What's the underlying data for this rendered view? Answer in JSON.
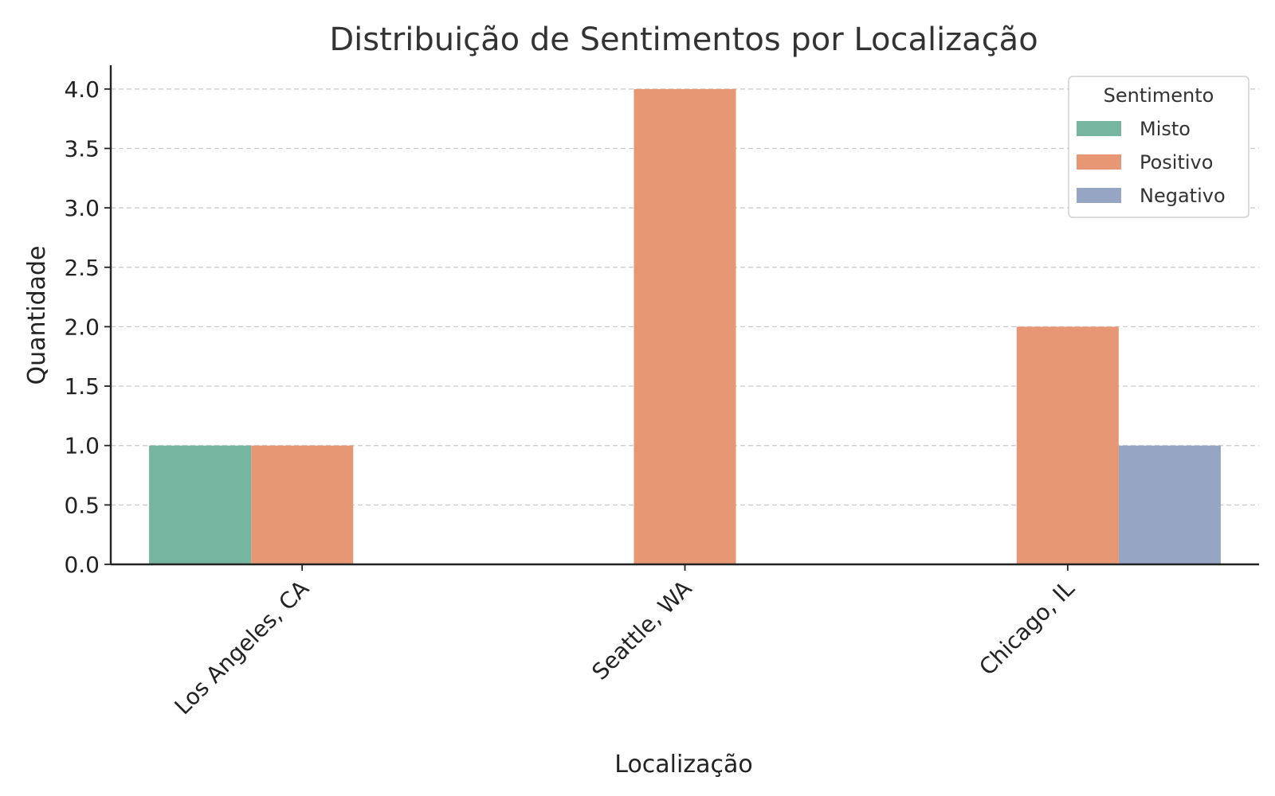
{
  "chart_data": {
    "type": "bar",
    "title": "Distribuição de Sentimentos por Localização",
    "xlabel": "Localização",
    "ylabel": "Quantidade",
    "categories": [
      "Los Angeles, CA",
      "Seattle, WA",
      "Chicago, IL"
    ],
    "series": [
      {
        "name": "Misto",
        "values": [
          1,
          0,
          0
        ],
        "color": "#76b5a0"
      },
      {
        "name": "Positivo",
        "values": [
          1,
          4,
          2
        ],
        "color": "#e89775"
      },
      {
        "name": "Negativo",
        "values": [
          0,
          0,
          1
        ],
        "color": "#96a5c4"
      }
    ],
    "ylim": [
      0,
      4.2
    ],
    "yticks": [
      "0.0",
      "0.5",
      "1.0",
      "1.5",
      "2.0",
      "2.5",
      "3.0",
      "3.5",
      "4.0"
    ],
    "legend": {
      "title": "Sentimento",
      "placement": "top-right"
    },
    "grid": true
  }
}
